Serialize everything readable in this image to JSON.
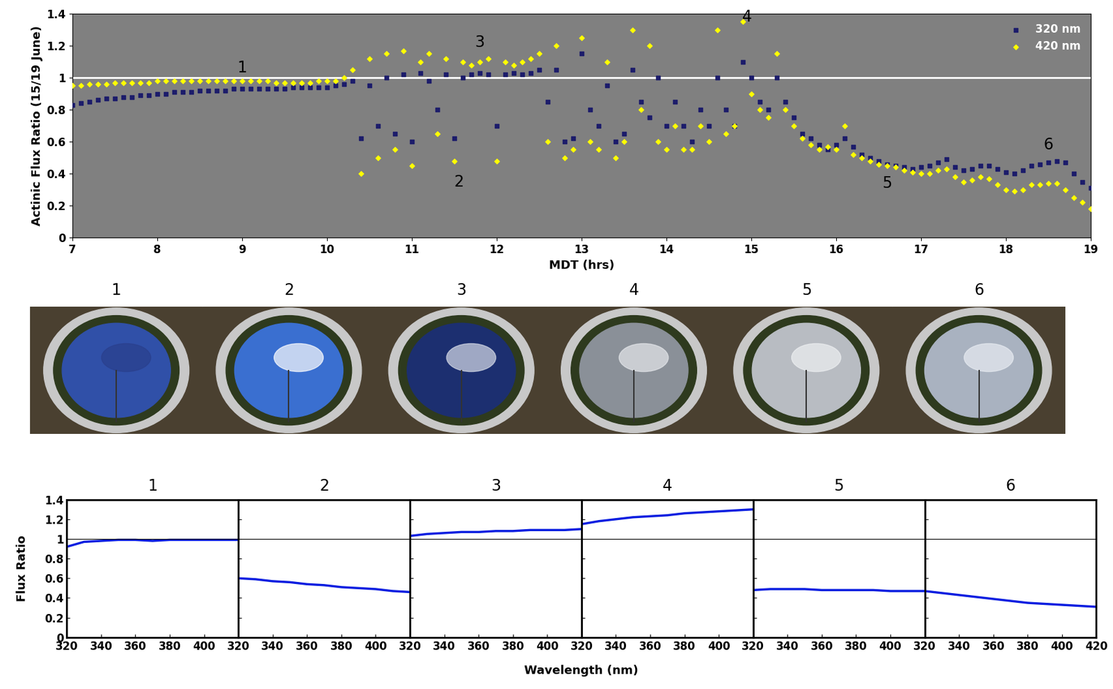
{
  "chart_data": [
    {
      "type": "scatter",
      "ylabel": "Actinic Flux Ratio (15/19 June)",
      "xlabel": "MDT (hrs)",
      "xlim": [
        7,
        19
      ],
      "xticks": [
        7,
        8,
        9,
        10,
        11,
        12,
        13,
        14,
        15,
        16,
        17,
        18,
        19
      ],
      "ylim": [
        0,
        1.4
      ],
      "yticks": [
        0,
        0.2,
        0.4,
        0.6,
        0.8,
        1,
        1.2,
        1.4
      ],
      "hline": 1,
      "legend": "upper right",
      "x": [
        7.0,
        7.1,
        7.2,
        7.3,
        7.4,
        7.5,
        7.6,
        7.7,
        7.8,
        7.9,
        8.0,
        8.1,
        8.2,
        8.3,
        8.4,
        8.5,
        8.6,
        8.7,
        8.8,
        8.9,
        9.0,
        9.1,
        9.2,
        9.3,
        9.4,
        9.5,
        9.6,
        9.7,
        9.8,
        9.9,
        10.0,
        10.1,
        10.2,
        10.3,
        10.4,
        10.5,
        10.6,
        10.7,
        10.8,
        10.9,
        11.0,
        11.1,
        11.2,
        11.3,
        11.4,
        11.5,
        11.6,
        11.7,
        11.8,
        11.9,
        12.0,
        12.1,
        12.2,
        12.3,
        12.4,
        12.5,
        12.6,
        12.7,
        12.8,
        12.9,
        13.0,
        13.1,
        13.2,
        13.3,
        13.4,
        13.5,
        13.6,
        13.7,
        13.8,
        13.9,
        14.0,
        14.1,
        14.2,
        14.3,
        14.4,
        14.5,
        14.6,
        14.7,
        14.8,
        14.9,
        15.0,
        15.1,
        15.2,
        15.3,
        15.4,
        15.5,
        15.6,
        15.7,
        15.8,
        15.9,
        16.0,
        16.1,
        16.2,
        16.3,
        16.4,
        16.5,
        16.6,
        16.7,
        16.8,
        16.9,
        17.0,
        17.1,
        17.2,
        17.3,
        17.4,
        17.5,
        17.6,
        17.7,
        17.8,
        17.9,
        18.0,
        18.1,
        18.2,
        18.3,
        18.4,
        18.5,
        18.6,
        18.7,
        18.8,
        18.9,
        19.0
      ],
      "series": [
        {
          "name": "320 nm",
          "color": "#1c1c6b",
          "marker": "square",
          "values": [
            0.83,
            0.84,
            0.85,
            0.86,
            0.87,
            0.87,
            0.88,
            0.88,
            0.89,
            0.89,
            0.9,
            0.9,
            0.91,
            0.91,
            0.91,
            0.92,
            0.92,
            0.92,
            0.92,
            0.93,
            0.93,
            0.93,
            0.93,
            0.93,
            0.93,
            0.93,
            0.94,
            0.94,
            0.94,
            0.94,
            0.94,
            0.95,
            0.96,
            0.98,
            0.62,
            0.95,
            0.7,
            1.0,
            0.65,
            1.02,
            0.6,
            1.03,
            0.98,
            0.8,
            1.02,
            0.62,
            1.0,
            1.02,
            1.03,
            1.02,
            0.7,
            1.02,
            1.03,
            1.02,
            1.03,
            1.05,
            0.85,
            1.05,
            0.6,
            0.62,
            1.15,
            0.8,
            0.7,
            0.95,
            0.6,
            0.65,
            1.05,
            0.85,
            0.75,
            1.0,
            0.7,
            0.85,
            0.7,
            0.6,
            0.8,
            0.7,
            1.0,
            0.8,
            0.7,
            1.1,
            1.0,
            0.85,
            0.8,
            1.0,
            0.85,
            0.75,
            0.65,
            0.62,
            0.58,
            0.55,
            0.58,
            0.62,
            0.57,
            0.52,
            0.5,
            0.48,
            0.46,
            0.45,
            0.44,
            0.43,
            0.44,
            0.45,
            0.47,
            0.49,
            0.44,
            0.42,
            0.43,
            0.45,
            0.45,
            0.43,
            0.41,
            0.4,
            0.42,
            0.45,
            0.46,
            0.47,
            0.48,
            0.47,
            0.4,
            0.35,
            0.31
          ]
        },
        {
          "name": "420 nm",
          "color": "#ffff00",
          "marker": "diamond",
          "values": [
            0.95,
            0.95,
            0.96,
            0.96,
            0.96,
            0.97,
            0.97,
            0.97,
            0.97,
            0.97,
            0.98,
            0.98,
            0.98,
            0.98,
            0.98,
            0.98,
            0.98,
            0.98,
            0.98,
            0.98,
            0.98,
            0.98,
            0.98,
            0.98,
            0.97,
            0.97,
            0.97,
            0.97,
            0.97,
            0.98,
            0.98,
            0.98,
            1.0,
            1.05,
            0.4,
            1.12,
            0.5,
            1.15,
            0.55,
            1.17,
            0.45,
            1.1,
            1.15,
            0.65,
            1.12,
            0.48,
            1.1,
            1.08,
            1.1,
            1.12,
            0.48,
            1.1,
            1.08,
            1.1,
            1.12,
            1.15,
            0.6,
            1.2,
            0.5,
            0.55,
            1.25,
            0.6,
            0.55,
            1.1,
            0.5,
            0.6,
            1.3,
            0.8,
            1.2,
            0.6,
            0.55,
            0.7,
            0.55,
            0.55,
            0.7,
            0.6,
            1.3,
            0.65,
            0.7,
            1.35,
            0.9,
            0.8,
            0.75,
            1.15,
            0.8,
            0.7,
            0.62,
            0.58,
            0.55,
            0.57,
            0.55,
            0.7,
            0.52,
            0.5,
            0.48,
            0.46,
            0.45,
            0.44,
            0.42,
            0.41,
            0.4,
            0.4,
            0.42,
            0.43,
            0.38,
            0.35,
            0.36,
            0.38,
            0.37,
            0.33,
            0.3,
            0.29,
            0.3,
            0.33,
            0.33,
            0.34,
            0.34,
            0.3,
            0.25,
            0.22,
            0.18
          ]
        }
      ],
      "annotations": [
        {
          "text": "1",
          "x": 9.0,
          "y": 1.06
        },
        {
          "text": "2",
          "x": 11.55,
          "y": 0.35
        },
        {
          "text": "3",
          "x": 11.8,
          "y": 1.22
        },
        {
          "text": "4",
          "x": 14.95,
          "y": 1.38
        },
        {
          "text": "5",
          "x": 16.6,
          "y": 0.34
        },
        {
          "text": "6",
          "x": 18.5,
          "y": 0.58
        }
      ]
    },
    {
      "type": "line",
      "title": "1",
      "color": "#0a1ee0",
      "x": [
        320,
        330,
        340,
        350,
        360,
        370,
        380,
        390,
        400,
        410,
        420
      ],
      "values": [
        0.92,
        0.97,
        0.98,
        0.99,
        0.99,
        0.98,
        0.99,
        0.99,
        0.99,
        0.99,
        0.99
      ],
      "xlim": [
        320,
        420
      ],
      "xticks": [
        320,
        340,
        360,
        380,
        400
      ],
      "ylim": [
        0,
        1.4
      ],
      "yticks": [
        0,
        0.2,
        0.4,
        0.6,
        0.8,
        1,
        1.2,
        1.4
      ],
      "hline": 1
    },
    {
      "type": "line",
      "title": "2",
      "color": "#0a1ee0",
      "x": [
        320,
        330,
        340,
        350,
        360,
        370,
        380,
        390,
        400,
        410,
        420
      ],
      "values": [
        0.6,
        0.59,
        0.57,
        0.56,
        0.54,
        0.53,
        0.51,
        0.5,
        0.49,
        0.47,
        0.46
      ],
      "xlim": [
        320,
        420
      ],
      "xticks": [
        320,
        340,
        360,
        380,
        400
      ],
      "ylim": [
        0,
        1.4
      ],
      "yticks": [
        0,
        0.2,
        0.4,
        0.6,
        0.8,
        1,
        1.2,
        1.4
      ],
      "hline": 1,
      "tick_labels": "x"
    },
    {
      "type": "line",
      "title": "3",
      "color": "#0a1ee0",
      "x": [
        320,
        330,
        340,
        350,
        360,
        370,
        380,
        390,
        400,
        410,
        420
      ],
      "values": [
        1.03,
        1.05,
        1.06,
        1.07,
        1.07,
        1.08,
        1.08,
        1.09,
        1.09,
        1.09,
        1.1
      ],
      "xlim": [
        320,
        420
      ],
      "xticks": [
        320,
        340,
        360,
        380,
        400
      ],
      "ylim": [
        0,
        1.4
      ],
      "yticks": [
        0,
        0.2,
        0.4,
        0.6,
        0.8,
        1,
        1.2,
        1.4
      ],
      "hline": 1,
      "tick_labels": "x"
    },
    {
      "type": "line",
      "title": "4",
      "color": "#0a1ee0",
      "x": [
        320,
        330,
        340,
        350,
        360,
        370,
        380,
        390,
        400,
        410,
        420
      ],
      "values": [
        1.15,
        1.18,
        1.2,
        1.22,
        1.23,
        1.24,
        1.26,
        1.27,
        1.28,
        1.29,
        1.3
      ],
      "xlim": [
        320,
        420
      ],
      "xticks": [
        320,
        340,
        360,
        380,
        400
      ],
      "ylim": [
        0,
        1.4
      ],
      "yticks": [
        0,
        0.2,
        0.4,
        0.6,
        0.8,
        1,
        1.2,
        1.4
      ],
      "hline": 1,
      "tick_labels": "x"
    },
    {
      "type": "line",
      "title": "5",
      "color": "#0a1ee0",
      "x": [
        320,
        330,
        340,
        350,
        360,
        370,
        380,
        390,
        400,
        410,
        420
      ],
      "values": [
        0.48,
        0.49,
        0.49,
        0.49,
        0.48,
        0.48,
        0.48,
        0.48,
        0.47,
        0.47,
        0.47
      ],
      "xlim": [
        320,
        420
      ],
      "xticks": [
        320,
        340,
        360,
        380,
        400
      ],
      "ylim": [
        0,
        1.4
      ],
      "yticks": [
        0,
        0.2,
        0.4,
        0.6,
        0.8,
        1,
        1.2,
        1.4
      ],
      "hline": 1,
      "tick_labels": "x"
    },
    {
      "type": "line",
      "title": "6",
      "color": "#0a1ee0",
      "x": [
        320,
        330,
        340,
        350,
        360,
        370,
        380,
        390,
        400,
        410,
        420
      ],
      "values": [
        0.47,
        0.45,
        0.43,
        0.41,
        0.39,
        0.37,
        0.35,
        0.34,
        0.33,
        0.32,
        0.31
      ],
      "xlim": [
        320,
        420
      ],
      "xticks": [
        320,
        340,
        360,
        380,
        400,
        420
      ],
      "ylim": [
        0,
        1.4
      ],
      "yticks": [
        0,
        0.2,
        0.4,
        0.6,
        0.8,
        1,
        1.2,
        1.4
      ],
      "hline": 1,
      "tick_labels": "x"
    }
  ],
  "photos": {
    "titles": [
      "1",
      "2",
      "3",
      "4",
      "5",
      "6"
    ]
  },
  "spectra": {
    "xlabel": "Wavelength (nm)",
    "ylabel": "Flux Ratio"
  }
}
